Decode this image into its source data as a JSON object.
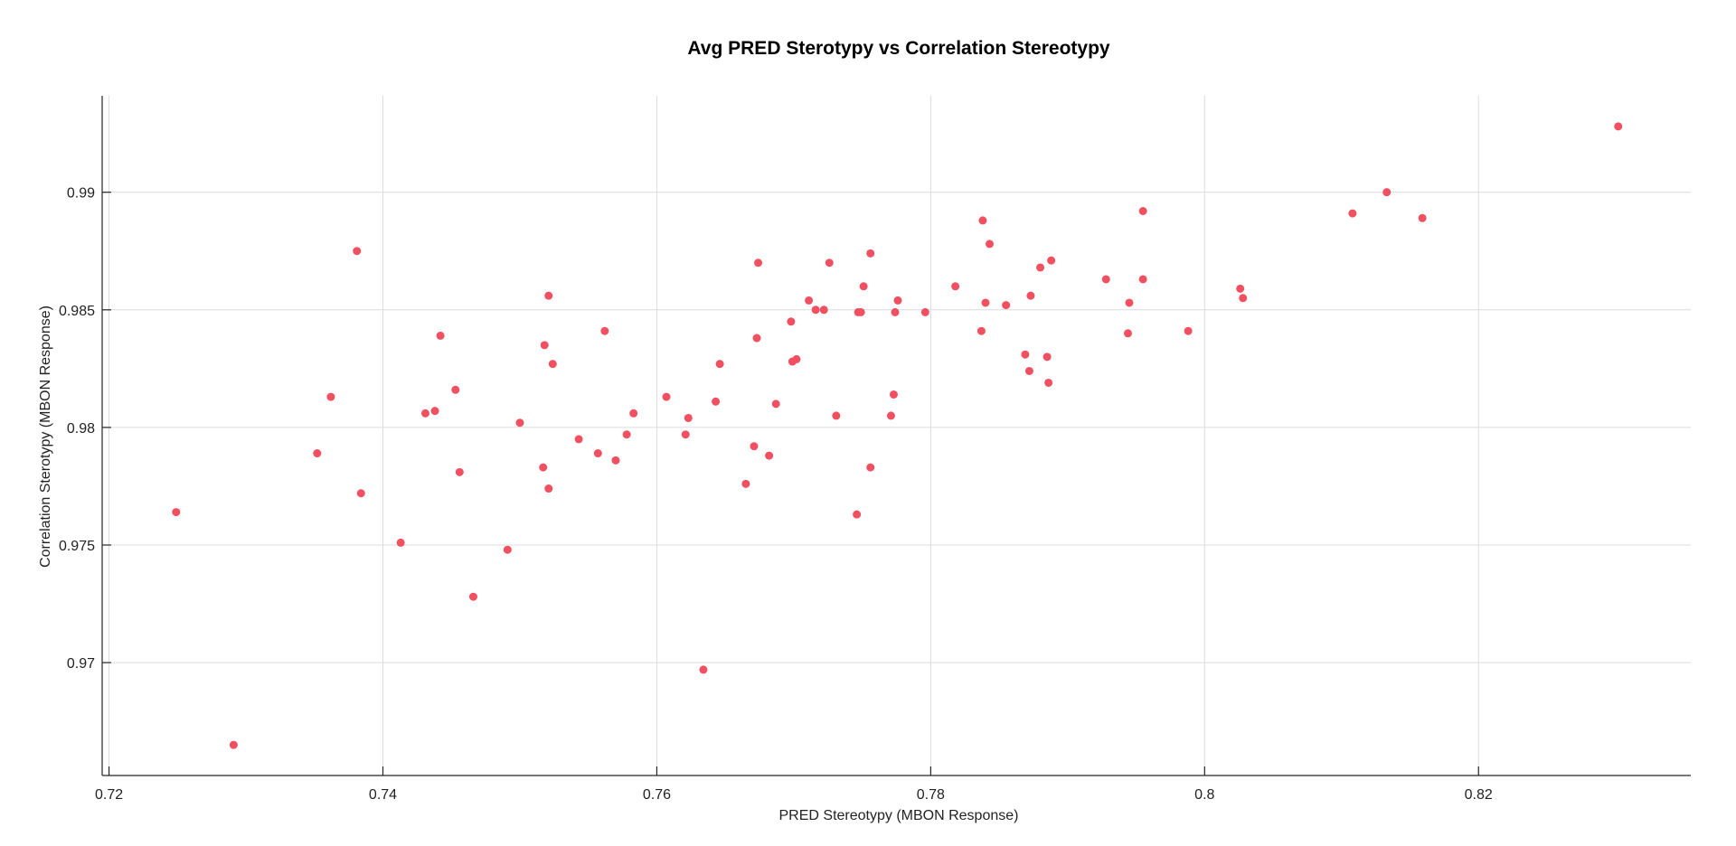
{
  "chart_data": {
    "type": "scatter",
    "title": "Avg PRED Sterotypy vs Correlation Stereotypy",
    "xlabel": "PRED Stereotypy (MBON Response)",
    "ylabel": "Correlation Sterotypy (MBON Response)",
    "xlim": [
      0.7195,
      0.8355
    ],
    "ylim": [
      0.9652,
      0.9941
    ],
    "xticks": [
      0.72,
      0.74,
      0.76,
      0.78,
      0.8,
      0.82
    ],
    "xtick_labels": [
      "0.72",
      "0.74",
      "0.76",
      "0.78",
      "0.8",
      "0.82"
    ],
    "yticks": [
      0.97,
      0.975,
      0.98,
      0.985,
      0.99
    ],
    "ytick_labels": [
      "0.97",
      "0.975",
      "0.98",
      "0.985",
      "0.99"
    ],
    "grid": true,
    "marker_color": "#f0505f",
    "points": [
      [
        0.7249,
        0.9764
      ],
      [
        0.7291,
        0.9665
      ],
      [
        0.7352,
        0.9789
      ],
      [
        0.7362,
        0.9813
      ],
      [
        0.7381,
        0.9875
      ],
      [
        0.7384,
        0.9772
      ],
      [
        0.7413,
        0.9751
      ],
      [
        0.7431,
        0.9806
      ],
      [
        0.7438,
        0.9807
      ],
      [
        0.7442,
        0.9839
      ],
      [
        0.7453,
        0.9816
      ],
      [
        0.7456,
        0.9781
      ],
      [
        0.7466,
        0.9728
      ],
      [
        0.7491,
        0.9748
      ],
      [
        0.75,
        0.9802
      ],
      [
        0.7517,
        0.9783
      ],
      [
        0.7518,
        0.9835
      ],
      [
        0.7521,
        0.9856
      ],
      [
        0.7521,
        0.9774
      ],
      [
        0.7524,
        0.9827
      ],
      [
        0.7543,
        0.9795
      ],
      [
        0.7557,
        0.9789
      ],
      [
        0.7562,
        0.9841
      ],
      [
        0.757,
        0.9786
      ],
      [
        0.7578,
        0.9797
      ],
      [
        0.7583,
        0.9806
      ],
      [
        0.7607,
        0.9813
      ],
      [
        0.7621,
        0.9797
      ],
      [
        0.7623,
        0.9804
      ],
      [
        0.7634,
        0.9697
      ],
      [
        0.7643,
        0.9811
      ],
      [
        0.7646,
        0.9827
      ],
      [
        0.7665,
        0.9776
      ],
      [
        0.7671,
        0.9792
      ],
      [
        0.7673,
        0.9838
      ],
      [
        0.7674,
        0.987
      ],
      [
        0.7682,
        0.9788
      ],
      [
        0.7687,
        0.981
      ],
      [
        0.7698,
        0.9845
      ],
      [
        0.7699,
        0.9828
      ],
      [
        0.7702,
        0.9829
      ],
      [
        0.7711,
        0.9854
      ],
      [
        0.7716,
        0.985
      ],
      [
        0.7722,
        0.985
      ],
      [
        0.7726,
        0.987
      ],
      [
        0.7731,
        0.9805
      ],
      [
        0.7746,
        0.9763
      ],
      [
        0.7747,
        0.9849
      ],
      [
        0.7749,
        0.9849
      ],
      [
        0.7751,
        0.986
      ],
      [
        0.7756,
        0.9874
      ],
      [
        0.7756,
        0.9783
      ],
      [
        0.7771,
        0.9805
      ],
      [
        0.7773,
        0.9814
      ],
      [
        0.7774,
        0.9849
      ],
      [
        0.7776,
        0.9854
      ],
      [
        0.7796,
        0.9849
      ],
      [
        0.7818,
        0.986
      ],
      [
        0.7837,
        0.9841
      ],
      [
        0.7838,
        0.9888
      ],
      [
        0.784,
        0.9853
      ],
      [
        0.7843,
        0.9878
      ],
      [
        0.7855,
        0.9852
      ],
      [
        0.7869,
        0.9831
      ],
      [
        0.7872,
        0.9824
      ],
      [
        0.7873,
        0.9856
      ],
      [
        0.788,
        0.9868
      ],
      [
        0.7885,
        0.983
      ],
      [
        0.7886,
        0.9819
      ],
      [
        0.7888,
        0.9871
      ],
      [
        0.7928,
        0.9863
      ],
      [
        0.7944,
        0.984
      ],
      [
        0.7945,
        0.9853
      ],
      [
        0.7955,
        0.9863
      ],
      [
        0.7955,
        0.9892
      ],
      [
        0.7988,
        0.9841
      ],
      [
        0.8026,
        0.9859
      ],
      [
        0.8028,
        0.9855
      ],
      [
        0.8108,
        0.9891
      ],
      [
        0.8133,
        0.99
      ],
      [
        0.8159,
        0.9889
      ],
      [
        0.8302,
        0.9928
      ]
    ]
  }
}
